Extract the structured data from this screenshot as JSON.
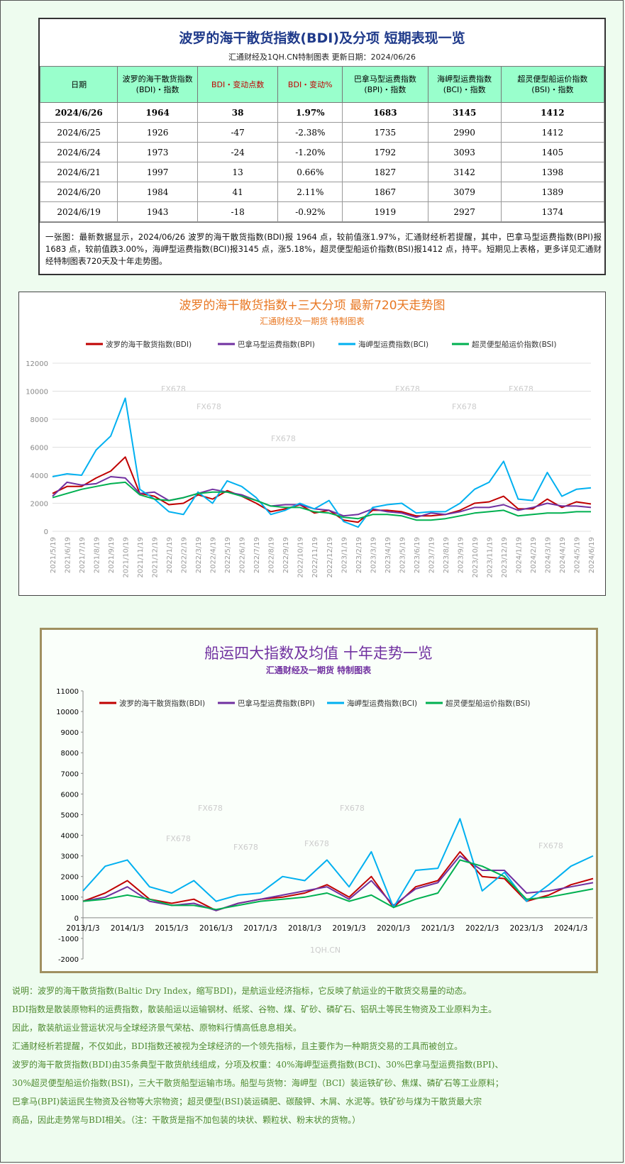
{
  "header": {
    "title": "波罗的海干散货指数(BDI)及分项  短期表现一览",
    "subtitle": "汇通财经及1QH.CN特制图表    更新日期：2024/06/26"
  },
  "table": {
    "columns": [
      [
        "日期"
      ],
      [
        "波罗的海干散货指数",
        "(BDI)・指数"
      ],
      [
        "BDI・变动点数"
      ],
      [
        "BDI・变动%"
      ],
      [
        "巴拿马型运费指数",
        "(BPI)・指数"
      ],
      [
        "海岬型运费指数",
        "(BCI)・指数"
      ],
      [
        "超灵便型船运价指数",
        "(BSI)・指数"
      ]
    ],
    "rows": [
      [
        "2024/6/26",
        "1964",
        "38",
        "1.97%",
        "1683",
        "3145",
        "1412"
      ],
      [
        "2024/6/25",
        "1926",
        "-47",
        "-2.38%",
        "1735",
        "2990",
        "1412"
      ],
      [
        "2024/6/24",
        "1973",
        "-24",
        "-1.20%",
        "1792",
        "3093",
        "1405"
      ],
      [
        "2024/6/21",
        "1997",
        "13",
        "0.66%",
        "1827",
        "3142",
        "1398"
      ],
      [
        "2024/6/20",
        "1984",
        "41",
        "2.11%",
        "1867",
        "3079",
        "1389"
      ],
      [
        "2024/6/19",
        "1943",
        "-18",
        "-0.92%",
        "1919",
        "2927",
        "1374"
      ]
    ],
    "note": "一张图：最新数据显示，2024/06/26 波罗的海干散货指数(BDI)报 1964 点，较前值涨1.97%，汇通财经析若提醒，其中，巴拿马型运费指数(BPI)报1683 点，较前值跌3.00%，海岬型运费指数(BCI)报3145 点，涨5.18%，超灵便型船运价指数(BSI)报1412 点，持平。短期见上表格，更多详见汇通财经特制图表720天及十年走势图。"
  },
  "chart_data": [
    {
      "type": "line",
      "title": "波罗的海干散货指数+三大分项  最新720天走势图",
      "subtitle": "汇通财经及一期货  特制图表",
      "title_color": "#e87722",
      "categories": [
        "2021/5/19",
        "2021/6/19",
        "2021/7/19",
        "2021/8/19",
        "2021/9/19",
        "2021/10/19",
        "2021/11/19",
        "2021/12/19",
        "2022/1/19",
        "2022/2/19",
        "2022/3/19",
        "2022/4/19",
        "2022/5/19",
        "2022/6/19",
        "2022/7/19",
        "2022/8/19",
        "2022/9/19",
        "2022/10/19",
        "2022/11/19",
        "2022/12/19",
        "2023/1/19",
        "2023/2/19",
        "2023/3/19",
        "2023/4/19",
        "2023/5/19",
        "2023/6/19",
        "2023/7/19",
        "2023/8/19",
        "2023/9/19",
        "2023/10/19",
        "2023/11/19",
        "2023/12/19",
        "2024/1/19",
        "2024/2/19",
        "2024/3/19",
        "2024/4/19",
        "2024/5/19",
        "2024/6/19"
      ],
      "series": [
        {
          "name": "波罗的海干散货指数(BDI)",
          "color": "#c00000",
          "values": [
            2700,
            3200,
            3200,
            3800,
            4300,
            5300,
            2700,
            2500,
            1900,
            2000,
            2600,
            2300,
            2900,
            2500,
            2000,
            1400,
            1600,
            1900,
            1300,
            1500,
            800,
            650,
            1500,
            1500,
            1400,
            1100,
            1100,
            1200,
            1500,
            2000,
            2100,
            2500,
            1600,
            1600,
            2300,
            1700,
            2100,
            1950
          ]
        },
        {
          "name": "巴拿马型运费指数(BPI)",
          "color": "#7030a0",
          "values": [
            2500,
            3500,
            3300,
            3400,
            3900,
            3800,
            2700,
            2800,
            2200,
            2400,
            2700,
            3000,
            2800,
            2600,
            2200,
            1800,
            1900,
            1900,
            1600,
            1500,
            1100,
            1200,
            1600,
            1400,
            1300,
            1000,
            1300,
            1200,
            1400,
            1700,
            1700,
            1900,
            1500,
            1700,
            2000,
            1800,
            1800,
            1700
          ]
        },
        {
          "name": "海岬型运费指数(BCI)",
          "color": "#00b0f0",
          "values": [
            3900,
            4100,
            4000,
            5800,
            6800,
            9500,
            3000,
            2300,
            1400,
            1200,
            2800,
            2000,
            3600,
            3200,
            2400,
            1200,
            1500,
            2000,
            1600,
            2200,
            700,
            300,
            1700,
            1900,
            2000,
            1300,
            1400,
            1400,
            2000,
            3000,
            3500,
            5000,
            2300,
            2200,
            4200,
            2500,
            3000,
            3100
          ]
        },
        {
          "name": "超灵便型船运价指数(BSI)",
          "color": "#00b050",
          "values": [
            2400,
            2700,
            3000,
            3200,
            3400,
            3500,
            2600,
            2300,
            2200,
            2400,
            2700,
            2800,
            2800,
            2500,
            2200,
            1800,
            1700,
            1700,
            1400,
            1300,
            1000,
            900,
            1200,
            1200,
            1100,
            800,
            800,
            900,
            1100,
            1300,
            1400,
            1500,
            1100,
            1200,
            1300,
            1300,
            1400,
            1400
          ]
        }
      ],
      "ylim": [
        0,
        12000
      ],
      "yticks": [
        0,
        2000,
        4000,
        6000,
        8000,
        10000,
        12000
      ],
      "grid": true,
      "legend": "top",
      "watermarks": [
        "FX678",
        "FX678",
        "FX678",
        "FX678",
        "FX678",
        "FX678"
      ]
    },
    {
      "type": "line",
      "title": "船运四大指数及均值 十年走势一览",
      "subtitle": "汇通财经及一期货 特制图表",
      "title_color": "#7030a0",
      "categories": [
        "2013/1/3",
        null,
        "2014/1/3",
        null,
        "2015/1/3",
        null,
        "2016/1/3",
        null,
        "2017/1/3",
        null,
        "2018/1/3",
        null,
        "2019/1/3",
        null,
        "2020/1/3",
        null,
        "2021/1/3",
        null,
        "2022/1/3",
        null,
        "2023/1/3",
        null,
        "2024/1/3",
        null
      ],
      "series": [
        {
          "name": "波罗的海干散货指数(BDI)",
          "color": "#c00000",
          "values": [
            800,
            1200,
            1800,
            900,
            700,
            900,
            350,
            700,
            900,
            1000,
            1200,
            1600,
            1000,
            2000,
            500,
            1500,
            1800,
            3200,
            2000,
            1900,
            800,
            1100,
            1600,
            1900
          ]
        },
        {
          "name": "巴拿马型运费指数(BPI)",
          "color": "#7030a0",
          "values": [
            800,
            1000,
            1500,
            800,
            600,
            700,
            350,
            700,
            900,
            1100,
            1300,
            1500,
            900,
            1800,
            600,
            1400,
            1700,
            3000,
            2300,
            2300,
            1200,
            1300,
            1500,
            1700
          ]
        },
        {
          "name": "海岬型运费指数(BCI)",
          "color": "#00b0f0",
          "values": [
            1300,
            2500,
            2800,
            1500,
            1200,
            1800,
            800,
            1100,
            1200,
            2000,
            1800,
            2800,
            1500,
            3200,
            500,
            2300,
            2400,
            4800,
            1300,
            2200,
            800,
            1600,
            2500,
            3000
          ]
        },
        {
          "name": "超灵便型船运价指数(BSI)",
          "color": "#00b050",
          "values": [
            800,
            900,
            1100,
            900,
            600,
            600,
            400,
            600,
            800,
            900,
            1000,
            1200,
            800,
            1100,
            500,
            900,
            1200,
            2800,
            2500,
            2000,
            900,
            1000,
            1200,
            1400
          ]
        }
      ],
      "ylim": [
        -2000,
        11000
      ],
      "yticks": [
        -2000,
        -1000,
        0,
        1000,
        2000,
        3000,
        4000,
        5000,
        6000,
        7000,
        8000,
        9000,
        10000,
        11000
      ],
      "grid": false,
      "legend": "top",
      "watermarks": [
        "FX678",
        "FX678",
        "FX678",
        "FX678",
        "FX678",
        "FX678",
        "1QH.CN"
      ]
    }
  ],
  "notes": [
    "说明：波罗的海干散货指数(Baltic Dry Index，缩写BDI)，是航运业经济指标，它反映了航运业的干散货交易量的动态。",
    "BDI指数是散装原物料的运费指数，散装船运以运输钢材、纸浆、谷物、煤、矿砂、磷矿石、铝矾土等民生物资及工业原料为主。",
    "因此，散装航运业营运状况与全球经济景气荣枯、原物料行情高低息息相关。",
    "汇通财经析若提醒，不仅如此，BDI指数还被视为全球经济的一个领先指标，且主要作为一种期货交易的工具而被创立。",
    "波罗的海干散货指数(BDI)由35条典型干散货航线组成，分项及权重：40%海岬型运费指数(BCI)、30%巴拿马型运费指数(BPI)、",
    "30%超灵便型船运价指数(BSI)，三大干散货船型运输市场。船型与货物：海岬型（BCI）装运铁矿砂、焦煤、磷矿石等工业原料；",
    "巴拿马(BPI)装运民生物资及谷物等大宗物资；超灵便型(BSI)装运磷肥、碳酸钾、木屑、水泥等。铁矿砂与煤为干散货最大宗",
    "商品，因此走势常与BDI相关。（注：干散货是指不加包装的块状、颗粒状、粉末状的货物。）"
  ]
}
